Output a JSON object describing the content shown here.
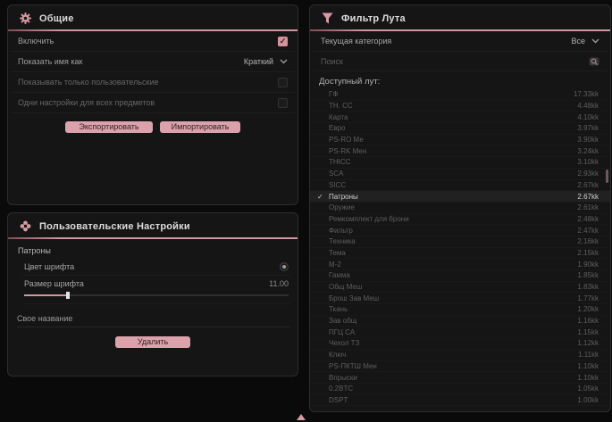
{
  "colors": {
    "accent_pink": "#d79aa3",
    "button_pink": "#dba2ab",
    "panel_bg": "#151515",
    "page_bg": "#0a0a0a"
  },
  "general": {
    "title": "Общие",
    "enable_label": "Включить",
    "enable_check_glyph": "✓",
    "name_mode_label": "Показать имя как",
    "name_mode_value": "Краткий",
    "only_custom_label": "Показывать только пользовательские",
    "same_settings_label": "Одни настройки для всех предметов",
    "export_label": "Экспортировать",
    "import_label": "Импортировать"
  },
  "user_settings": {
    "title": "Пользовательские Настройки",
    "group_label": "Патроны",
    "font_color_label": "Цвет шрифта",
    "font_size_label": "Размер шрифта",
    "font_size_value": "11.00",
    "font_size_slider_percent": "16%",
    "custom_name_placeholder": "Свое название",
    "delete_label": "Удалить"
  },
  "loot_filter": {
    "title": "Фильтр Лута",
    "category_label": "Текущая категория",
    "category_value": "Все",
    "search_placeholder": "Поиск",
    "list_label": "Доступный лут:",
    "items": [
      {
        "name": "ГФ",
        "value": "17.33kk",
        "selected": false
      },
      {
        "name": "ТН. СС",
        "value": "4.48kk",
        "selected": false
      },
      {
        "name": "Карта",
        "value": "4.10kk",
        "selected": false
      },
      {
        "name": "Евро",
        "value": "3.97kk",
        "selected": false
      },
      {
        "name": "PS-RO Ме",
        "value": "3.90kk",
        "selected": false
      },
      {
        "name": "PS-RK Мен",
        "value": "3.24kk",
        "selected": false
      },
      {
        "name": "ТНІСС",
        "value": "3.10kk",
        "selected": false
      },
      {
        "name": "SCA",
        "value": "2.93kk",
        "selected": false
      },
      {
        "name": "SІСС",
        "value": "2.67kk",
        "selected": false
      },
      {
        "name": "Патроны",
        "value": "2.67kk",
        "selected": true
      },
      {
        "name": "Оружие",
        "value": "2.61kk",
        "selected": false
      },
      {
        "name": "Ремкомплект для брони",
        "value": "2.48kk",
        "selected": false
      },
      {
        "name": "Фильтр",
        "value": "2.47kk",
        "selected": false
      },
      {
        "name": "Техника",
        "value": "2.16kk",
        "selected": false
      },
      {
        "name": "Тема",
        "value": "2.15kk",
        "selected": false
      },
      {
        "name": "М-2",
        "value": "1.90kk",
        "selected": false
      },
      {
        "name": "Гамма",
        "value": "1.85kk",
        "selected": false
      },
      {
        "name": "Общ Меш",
        "value": "1.83kk",
        "selected": false
      },
      {
        "name": "Брош Зав Меш",
        "value": "1.77kk",
        "selected": false
      },
      {
        "name": "Ткань",
        "value": "1.20kk",
        "selected": false
      },
      {
        "name": "Зав общ",
        "value": "1.16kk",
        "selected": false
      },
      {
        "name": "ПГЦ СА",
        "value": "1.15kk",
        "selected": false
      },
      {
        "name": "Чехол ТЗ",
        "value": "1.12kk",
        "selected": false
      },
      {
        "name": "Ключ",
        "value": "1.11kk",
        "selected": false
      },
      {
        "name": "PS-ПКТШ Мен",
        "value": "1.10kk",
        "selected": false
      },
      {
        "name": "Впрыски",
        "value": "1.10kk",
        "selected": false
      },
      {
        "name": "0.2BTC",
        "value": "1.05kk",
        "selected": false
      },
      {
        "name": "DSPT",
        "value": "1.00kk",
        "selected": false
      }
    ]
  }
}
